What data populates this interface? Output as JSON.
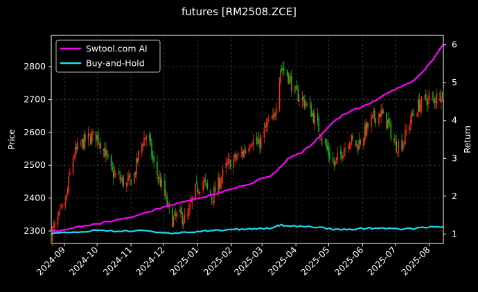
{
  "chart_data": {
    "type": "line",
    "title": "futures [RM2508.ZCE]",
    "xlabel": "",
    "ylabel": "Price",
    "y2label": "Return",
    "x_ticks": [
      "2024-09",
      "2024-10",
      "2024-11",
      "2024-12",
      "2025-01",
      "2025-02",
      "2025-03",
      "2025-04",
      "2025-05",
      "2025-06",
      "2025-07",
      "2025-08"
    ],
    "x_range": [
      "2024-08-20",
      "2025-08-14"
    ],
    "ylim": [
      2262,
      2895
    ],
    "y_ticks": [
      2300,
      2400,
      2500,
      2600,
      2700,
      2800
    ],
    "y2lim": [
      0.75,
      6.25
    ],
    "y2_ticks": [
      1,
      2,
      3,
      4,
      5,
      6
    ],
    "grid": true,
    "legend_position": "top-left",
    "colors": {
      "up": "#ff2a1a",
      "down": "#1fb31f",
      "ai": "#ff00ff",
      "bh": "#22d9ee",
      "grid": "#555555",
      "axes": "#ffffff"
    },
    "candles": {
      "description": "daily OHLC candlesticks; red = close above open, green = close below open",
      "close_path": [
        [
          "2024-08-20",
          2290
        ],
        [
          "2024-08-27",
          2340
        ],
        [
          "2024-09-03",
          2400
        ],
        [
          "2024-09-08",
          2520
        ],
        [
          "2024-09-15",
          2560
        ],
        [
          "2024-09-22",
          2580
        ],
        [
          "2024-09-30",
          2590
        ],
        [
          "2024-10-06",
          2560
        ],
        [
          "2024-10-14",
          2480
        ],
        [
          "2024-10-21",
          2460
        ],
        [
          "2024-10-28",
          2440
        ],
        [
          "2024-11-04",
          2470
        ],
        [
          "2024-11-10",
          2560
        ],
        [
          "2024-11-16",
          2600
        ],
        [
          "2024-11-22",
          2500
        ],
        [
          "2024-12-01",
          2420
        ],
        [
          "2024-12-08",
          2330
        ],
        [
          "2024-12-15",
          2350
        ],
        [
          "2024-12-22",
          2330
        ],
        [
          "2024-12-29",
          2420
        ],
        [
          "2025-01-06",
          2450
        ],
        [
          "2025-01-14",
          2400
        ],
        [
          "2025-01-21",
          2450
        ],
        [
          "2025-01-28",
          2500
        ],
        [
          "2025-02-05",
          2520
        ],
        [
          "2025-02-12",
          2540
        ],
        [
          "2025-02-19",
          2580
        ],
        [
          "2025-02-26",
          2560
        ],
        [
          "2025-03-05",
          2620
        ],
        [
          "2025-03-12",
          2640
        ],
        [
          "2025-03-18",
          2800
        ],
        [
          "2025-03-24",
          2780
        ],
        [
          "2025-03-31",
          2720
        ],
        [
          "2025-04-07",
          2700
        ],
        [
          "2025-04-14",
          2670
        ],
        [
          "2025-04-21",
          2620
        ],
        [
          "2025-04-28",
          2560
        ],
        [
          "2025-05-06",
          2500
        ],
        [
          "2025-05-13",
          2540
        ],
        [
          "2025-05-20",
          2580
        ],
        [
          "2025-05-27",
          2560
        ],
        [
          "2025-06-03",
          2600
        ],
        [
          "2025-06-10",
          2640
        ],
        [
          "2025-06-17",
          2660
        ],
        [
          "2025-06-24",
          2630
        ],
        [
          "2025-07-01",
          2560
        ],
        [
          "2025-07-08",
          2570
        ],
        [
          "2025-07-15",
          2640
        ],
        [
          "2025-07-22",
          2680
        ],
        [
          "2025-07-29",
          2700
        ],
        [
          "2025-08-05",
          2700
        ],
        [
          "2025-08-12",
          2720
        ]
      ]
    },
    "series": [
      {
        "name": "Swtool.com AI",
        "color": "#ff00ff",
        "axis": "right",
        "points": [
          [
            "2024-08-20",
            1.05
          ],
          [
            "2024-09-10",
            1.17
          ],
          [
            "2024-10-01",
            1.27
          ],
          [
            "2024-10-20",
            1.38
          ],
          [
            "2024-11-10",
            1.52
          ],
          [
            "2024-12-01",
            1.72
          ],
          [
            "2024-12-15",
            1.82
          ],
          [
            "2025-01-01",
            1.94
          ],
          [
            "2025-01-15",
            2.04
          ],
          [
            "2025-02-01",
            2.19
          ],
          [
            "2025-02-15",
            2.3
          ],
          [
            "2025-03-01",
            2.47
          ],
          [
            "2025-03-10",
            2.56
          ],
          [
            "2025-03-18",
            2.77
          ],
          [
            "2025-03-25",
            3.0
          ],
          [
            "2025-04-05",
            3.13
          ],
          [
            "2025-04-15",
            3.35
          ],
          [
            "2025-04-25",
            3.65
          ],
          [
            "2025-05-05",
            3.97
          ],
          [
            "2025-05-15",
            4.17
          ],
          [
            "2025-06-01",
            4.37
          ],
          [
            "2025-06-15",
            4.57
          ],
          [
            "2025-07-01",
            4.82
          ],
          [
            "2025-07-15",
            5.0
          ],
          [
            "2025-07-25",
            5.25
          ],
          [
            "2025-08-05",
            5.62
          ],
          [
            "2025-08-10",
            5.85
          ],
          [
            "2025-08-14",
            6.02
          ]
        ]
      },
      {
        "name": "Buy-and-Hold",
        "color": "#22d9ee",
        "axis": "right",
        "points": [
          [
            "2024-08-20",
            1.0
          ],
          [
            "2024-09-10",
            1.05
          ],
          [
            "2024-10-01",
            1.1
          ],
          [
            "2024-10-20",
            1.07
          ],
          [
            "2024-11-10",
            1.1
          ],
          [
            "2024-12-01",
            1.03
          ],
          [
            "2024-12-15",
            1.02
          ],
          [
            "2025-01-01",
            1.07
          ],
          [
            "2025-01-15",
            1.09
          ],
          [
            "2025-02-01",
            1.12
          ],
          [
            "2025-02-15",
            1.13
          ],
          [
            "2025-03-01",
            1.14
          ],
          [
            "2025-03-10",
            1.16
          ],
          [
            "2025-03-18",
            1.24
          ],
          [
            "2025-03-25",
            1.21
          ],
          [
            "2025-04-10",
            1.19
          ],
          [
            "2025-04-25",
            1.18
          ],
          [
            "2025-05-05",
            1.11
          ],
          [
            "2025-05-20",
            1.13
          ],
          [
            "2025-06-05",
            1.15
          ],
          [
            "2025-06-20",
            1.16
          ],
          [
            "2025-07-05",
            1.12
          ],
          [
            "2025-07-20",
            1.15
          ],
          [
            "2025-08-01",
            1.18
          ],
          [
            "2025-08-14",
            1.2
          ]
        ]
      }
    ]
  }
}
